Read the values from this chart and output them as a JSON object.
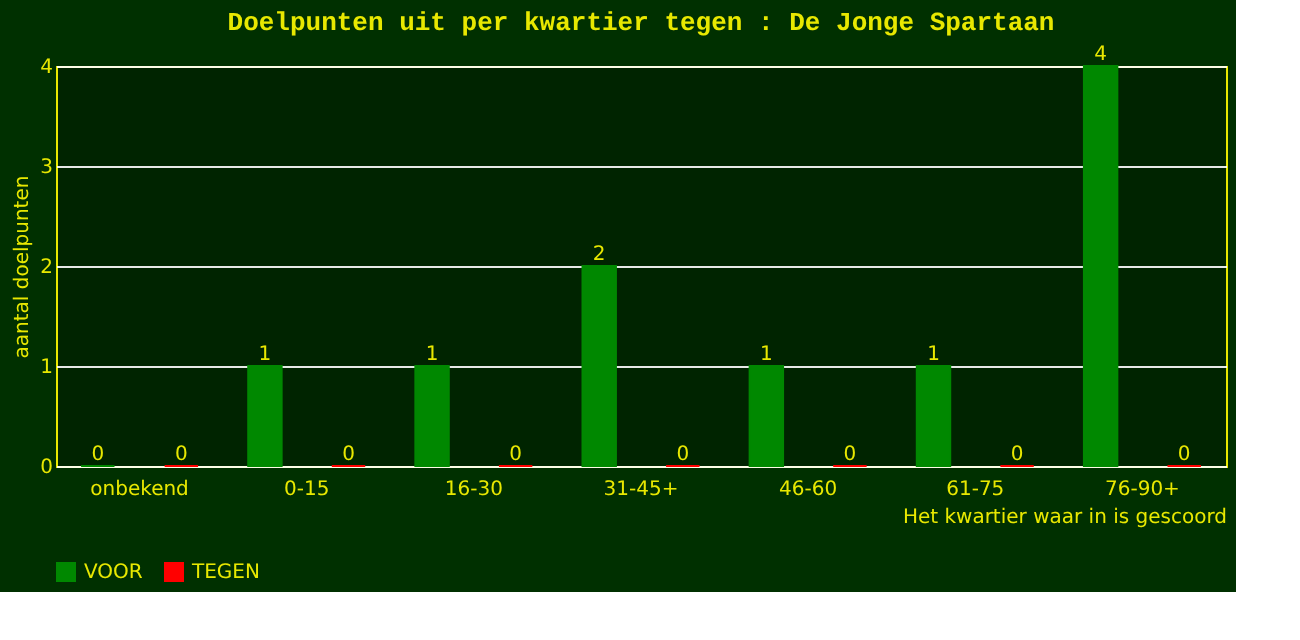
{
  "chart_data": {
    "type": "bar",
    "title": "Doelpunten uit per kwartier tegen : De Jonge Spartaan",
    "categories": [
      "onbekend",
      "0-15",
      "16-30",
      "31-45+",
      "46-60",
      "61-75",
      "76-90+"
    ],
    "series": [
      {
        "name": "VOOR",
        "color": "#008800",
        "values": [
          0,
          1,
          1,
          2,
          1,
          1,
          4
        ]
      },
      {
        "name": "TEGEN",
        "color": "#ff0000",
        "values": [
          0,
          0,
          0,
          0,
          0,
          0,
          0
        ]
      }
    ],
    "xlabel": "Het kwartier waar in is gescoord",
    "ylabel": "aantal doelpunten",
    "ylim": [
      0,
      4
    ],
    "yticks": [
      0,
      1,
      2,
      3,
      4
    ],
    "grid": "y",
    "legend": "bottom",
    "data_labels": true
  }
}
